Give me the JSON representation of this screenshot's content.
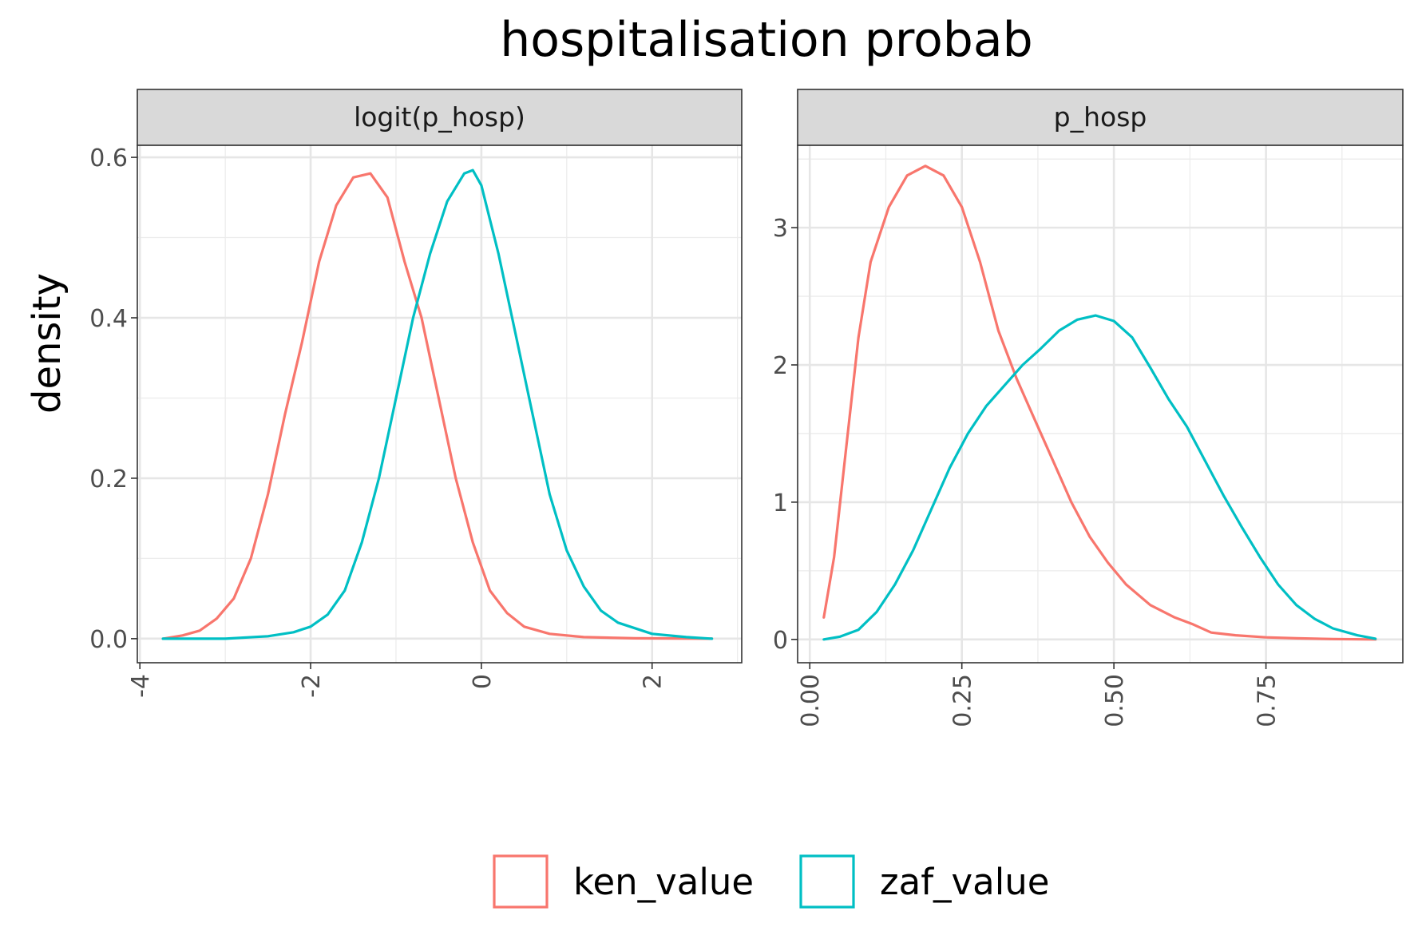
{
  "chart_data": {
    "type": "line",
    "title": "hospitalisation probab",
    "ylabel": "density",
    "xlabel": "",
    "grid": true,
    "legend_position": "bottom",
    "series_colors": {
      "ken_value": "#F8766D",
      "zaf_value": "#00BFC4"
    },
    "legend": [
      {
        "name": "ken_value",
        "color": "#F8766D"
      },
      {
        "name": "zaf_value",
        "color": "#00BFC4"
      }
    ],
    "panels": [
      {
        "strip": "logit(p_hosp)",
        "xlim": [
          -4.03,
          3.05
        ],
        "ylim": [
          -0.03,
          0.615
        ],
        "x_ticks": [
          -4,
          -2,
          0,
          2
        ],
        "x_tick_labels": [
          "-4",
          "-2",
          "0",
          "2"
        ],
        "y_ticks": [
          0,
          0.2,
          0.4,
          0.6
        ],
        "y_tick_labels": [
          "0.0",
          "0.2",
          "0.4",
          "0.6"
        ],
        "series": [
          {
            "name": "ken_value",
            "color": "#F8766D",
            "points": [
              [
                -3.73,
                0
              ],
              [
                -3.5,
                0.004
              ],
              [
                -3.3,
                0.01
              ],
              [
                -3.1,
                0.025
              ],
              [
                -2.9,
                0.05
              ],
              [
                -2.7,
                0.1
              ],
              [
                -2.5,
                0.18
              ],
              [
                -2.3,
                0.28
              ],
              [
                -2.1,
                0.37
              ],
              [
                -1.9,
                0.47
              ],
              [
                -1.7,
                0.54
              ],
              [
                -1.5,
                0.575
              ],
              [
                -1.3,
                0.58
              ],
              [
                -1.1,
                0.55
              ],
              [
                -0.9,
                0.47
              ],
              [
                -0.7,
                0.4
              ],
              [
                -0.5,
                0.3
              ],
              [
                -0.3,
                0.2
              ],
              [
                -0.1,
                0.12
              ],
              [
                0.1,
                0.06
              ],
              [
                0.3,
                0.032
              ],
              [
                0.5,
                0.015
              ],
              [
                0.8,
                0.006
              ],
              [
                1.2,
                0.002
              ],
              [
                1.8,
                0.0005
              ],
              [
                2.7,
                0
              ]
            ]
          },
          {
            "name": "zaf_value",
            "color": "#00BFC4",
            "points": [
              [
                -3.73,
                0
              ],
              [
                -3.0,
                0
              ],
              [
                -2.5,
                0.003
              ],
              [
                -2.2,
                0.008
              ],
              [
                -2.0,
                0.015
              ],
              [
                -1.8,
                0.03
              ],
              [
                -1.6,
                0.06
              ],
              [
                -1.4,
                0.12
              ],
              [
                -1.2,
                0.2
              ],
              [
                -1.0,
                0.3
              ],
              [
                -0.8,
                0.4
              ],
              [
                -0.6,
                0.48
              ],
              [
                -0.4,
                0.545
              ],
              [
                -0.2,
                0.58
              ],
              [
                -0.1,
                0.584
              ],
              [
                0.0,
                0.565
              ],
              [
                0.2,
                0.48
              ],
              [
                0.4,
                0.38
              ],
              [
                0.6,
                0.28
              ],
              [
                0.8,
                0.18
              ],
              [
                1.0,
                0.11
              ],
              [
                1.2,
                0.065
              ],
              [
                1.4,
                0.035
              ],
              [
                1.6,
                0.02
              ],
              [
                2.0,
                0.006
              ],
              [
                2.4,
                0.002
              ],
              [
                2.7,
                0
              ]
            ]
          }
        ]
      },
      {
        "strip": "p_hosp",
        "xlim": [
          -0.02,
          0.975
        ],
        "ylim": [
          -0.17,
          3.6
        ],
        "x_ticks": [
          0,
          0.25,
          0.5,
          0.75
        ],
        "x_tick_labels": [
          "0.00",
          "0.25",
          "0.50",
          "0.75"
        ],
        "y_ticks": [
          0,
          1,
          2,
          3
        ],
        "y_tick_labels": [
          "0",
          "1",
          "2",
          "3"
        ],
        "series": [
          {
            "name": "ken_value",
            "color": "#F8766D",
            "points": [
              [
                0.023,
                0.16
              ],
              [
                0.04,
                0.6
              ],
              [
                0.06,
                1.4
              ],
              [
                0.08,
                2.2
              ],
              [
                0.1,
                2.75
              ],
              [
                0.13,
                3.15
              ],
              [
                0.16,
                3.38
              ],
              [
                0.19,
                3.45
              ],
              [
                0.22,
                3.38
              ],
              [
                0.25,
                3.15
              ],
              [
                0.28,
                2.75
              ],
              [
                0.31,
                2.25
              ],
              [
                0.34,
                1.9
              ],
              [
                0.37,
                1.6
              ],
              [
                0.4,
                1.3
              ],
              [
                0.43,
                1.0
              ],
              [
                0.46,
                0.75
              ],
              [
                0.49,
                0.56
              ],
              [
                0.52,
                0.4
              ],
              [
                0.56,
                0.25
              ],
              [
                0.6,
                0.16
              ],
              [
                0.63,
                0.11
              ],
              [
                0.66,
                0.05
              ],
              [
                0.7,
                0.03
              ],
              [
                0.75,
                0.015
              ],
              [
                0.8,
                0.008
              ],
              [
                0.86,
                0.003
              ],
              [
                0.93,
                0
              ]
            ]
          },
          {
            "name": "zaf_value",
            "color": "#00BFC4",
            "points": [
              [
                0.023,
                0
              ],
              [
                0.05,
                0.02
              ],
              [
                0.08,
                0.07
              ],
              [
                0.11,
                0.2
              ],
              [
                0.14,
                0.4
              ],
              [
                0.17,
                0.65
              ],
              [
                0.2,
                0.95
              ],
              [
                0.23,
                1.25
              ],
              [
                0.26,
                1.5
              ],
              [
                0.29,
                1.7
              ],
              [
                0.32,
                1.85
              ],
              [
                0.35,
                2.0
              ],
              [
                0.38,
                2.12
              ],
              [
                0.41,
                2.25
              ],
              [
                0.44,
                2.33
              ],
              [
                0.47,
                2.36
              ],
              [
                0.5,
                2.32
              ],
              [
                0.53,
                2.2
              ],
              [
                0.56,
                1.98
              ],
              [
                0.59,
                1.75
              ],
              [
                0.62,
                1.55
              ],
              [
                0.65,
                1.3
              ],
              [
                0.68,
                1.05
              ],
              [
                0.71,
                0.82
              ],
              [
                0.74,
                0.6
              ],
              [
                0.77,
                0.4
              ],
              [
                0.8,
                0.25
              ],
              [
                0.83,
                0.15
              ],
              [
                0.86,
                0.08
              ],
              [
                0.9,
                0.03
              ],
              [
                0.93,
                0.005
              ]
            ]
          }
        ]
      }
    ]
  }
}
